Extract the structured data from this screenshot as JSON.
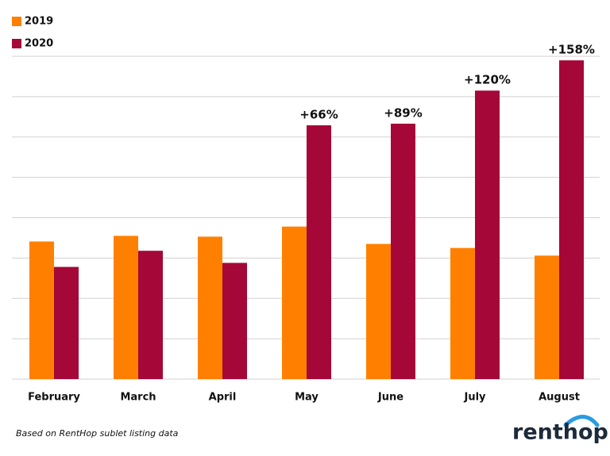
{
  "chart_data": {
    "type": "bar",
    "categories": [
      "February",
      "March",
      "April",
      "May",
      "June",
      "July",
      "August"
    ],
    "series": [
      {
        "name": "2019",
        "color": "#ff8000",
        "values": [
          3.41,
          3.55,
          3.53,
          3.78,
          3.35,
          3.25,
          3.06
        ]
      },
      {
        "name": "2020",
        "color": "#a50838",
        "values": [
          2.78,
          3.18,
          2.88,
          6.29,
          6.33,
          7.15,
          7.9
        ],
        "annotations": [
          null,
          null,
          null,
          "+66%",
          "+89%",
          "+120%",
          "+158%"
        ]
      }
    ],
    "ylim": [
      0,
      8
    ],
    "yticks": [
      0,
      1,
      2,
      3,
      4,
      5,
      6,
      7,
      8
    ],
    "grid": true,
    "legend": "top-left",
    "source": "Based on RentHop sublet listing data",
    "logo": "renthop"
  }
}
